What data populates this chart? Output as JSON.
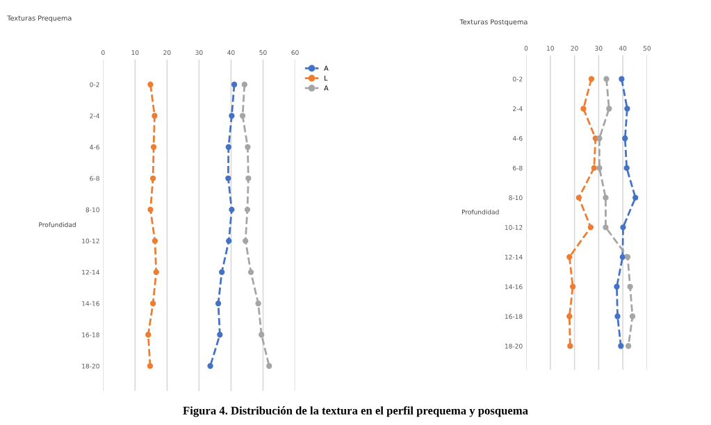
{
  "chart_data": [
    {
      "type": "line",
      "title": "Texturas Prequema",
      "ylabel": "Profundidad",
      "orientation": "horizontal",
      "categories": [
        "0-2",
        "2-4",
        "4-6",
        "6-8",
        "8-10",
        "10-12",
        "12-14",
        "14-16",
        "16-18",
        "18-20"
      ],
      "series": [
        {
          "name": "A",
          "color": "#4472c4",
          "values": [
            41.0,
            40.2,
            39.2,
            39.1,
            40.2,
            39.3,
            37.1,
            36.0,
            36.5,
            33.5
          ]
        },
        {
          "name": "L",
          "color": "#ed7d31",
          "values": [
            14.8,
            16.1,
            15.8,
            15.6,
            14.8,
            16.2,
            16.6,
            15.6,
            14.1,
            14.7
          ]
        },
        {
          "name": "A",
          "color": "#a5a5a5",
          "values": [
            44.2,
            43.6,
            45.2,
            45.4,
            45.1,
            44.5,
            46.2,
            48.5,
            49.5,
            51.9
          ]
        }
      ],
      "xlim": [
        0,
        60
      ],
      "xticks": [
        0,
        10,
        20,
        30,
        40,
        50,
        60
      ],
      "grid": "x",
      "legend": "right",
      "marker": "circle",
      "line_style": "dashed"
    },
    {
      "type": "line",
      "title": "Texturas Postquema",
      "ylabel": "Profundidad",
      "orientation": "horizontal",
      "categories": [
        "0-2",
        "2-4",
        "4-6",
        "6-8",
        "8-10",
        "10-12",
        "12-14",
        "14-16",
        "16-18",
        "18-20"
      ],
      "series": [
        {
          "color": "#4472c4",
          "values": [
            39.5,
            41.8,
            40.9,
            41.6,
            45.2,
            40.1,
            39.9,
            37.5,
            37.8,
            39.2
          ]
        },
        {
          "color": "#ed7d31",
          "values": [
            27.0,
            23.7,
            28.7,
            28.1,
            21.8,
            26.7,
            17.9,
            19.3,
            17.9,
            18.2
          ]
        },
        {
          "color": "#a5a5a5",
          "values": [
            33.2,
            34.3,
            30.3,
            30.3,
            32.9,
            32.9,
            42.0,
            43.0,
            44.0,
            42.3
          ]
        }
      ],
      "xlim": [
        0,
        50
      ],
      "xticks": [
        0,
        10,
        20,
        30,
        40,
        50
      ],
      "grid": "x",
      "marker": "circle",
      "line_style": "dashed",
      "annotations": [
        "Figura 4. Distribución de la textura en el perfil prequema y posquema"
      ]
    }
  ]
}
